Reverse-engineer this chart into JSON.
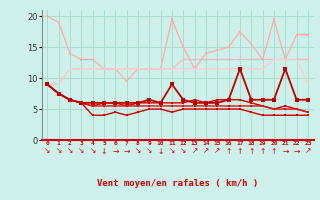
{
  "bg_color": "#cef0ea",
  "grid_color": "#aaddcc",
  "xlabel": "Vent moyen/en rafales ( km/h )",
  "ylim": [
    0,
    21
  ],
  "yticks": [
    0,
    5,
    10,
    15,
    20
  ],
  "series": [
    {
      "values": [
        20,
        19,
        14,
        13,
        13,
        11.5,
        11.5,
        9.5,
        11.5,
        11.5,
        11.5,
        19.5,
        15,
        11.5,
        14,
        14.5,
        15,
        17.5,
        15.5,
        13,
        19.5,
        13,
        17,
        17
      ],
      "color": "#ffaaaa",
      "lw": 0.9,
      "marker": "s",
      "ms": 1.8
    },
    {
      "values": [
        9,
        9,
        11.5,
        11.5,
        11.5,
        11.5,
        11.5,
        11.5,
        11.5,
        11.5,
        11.5,
        11.5,
        13,
        13,
        13,
        13,
        13,
        13,
        13,
        13,
        13,
        13,
        13,
        13
      ],
      "color": "#ffbbbb",
      "lw": 0.9,
      "marker": "s",
      "ms": 1.8
    },
    {
      "values": [
        9,
        9,
        11.5,
        11.5,
        11.5,
        11.5,
        11.5,
        11.5,
        11.5,
        11.5,
        11.5,
        11.5,
        11.5,
        11.5,
        11.5,
        11.5,
        11.5,
        11.5,
        11.5,
        11.5,
        13,
        13,
        13,
        9
      ],
      "color": "#ffcccc",
      "lw": 0.9,
      "marker": "s",
      "ms": 1.8
    },
    {
      "values": [
        9,
        7.5,
        6.5,
        6,
        5.5,
        6,
        6,
        5.5,
        6,
        6,
        6,
        6,
        6,
        6.5,
        6,
        6.5,
        6.5,
        6.5,
        6,
        5.5,
        5,
        5.5,
        5,
        4.5
      ],
      "color": "#cc0000",
      "lw": 1.0,
      "marker": "s",
      "ms": 1.8
    },
    {
      "values": [
        9,
        7.5,
        6.5,
        6,
        5.5,
        5.5,
        5.5,
        5.5,
        5.5,
        5.5,
        5.5,
        5.5,
        5.5,
        5.5,
        5.5,
        5.5,
        5.5,
        5.5,
        5.5,
        5.5,
        5,
        5,
        5,
        4.5
      ],
      "color": "#dd1111",
      "lw": 1.0,
      "marker": "s",
      "ms": 1.5
    },
    {
      "values": [
        9,
        7.5,
        6.5,
        6,
        4,
        4,
        4.5,
        4,
        4.5,
        5,
        5,
        4.5,
        5,
        5,
        5,
        5,
        5,
        5,
        4.5,
        4,
        4,
        4,
        4,
        4
      ],
      "color": "#cc0000",
      "lw": 1.0,
      "marker": "s",
      "ms": 1.8
    },
    {
      "values": [
        9,
        7.5,
        6.5,
        6,
        6,
        6,
        6,
        6,
        6,
        6.5,
        6,
        9,
        6.5,
        6,
        6,
        6,
        6.5,
        11.5,
        6.5,
        6.5,
        6.5,
        11.5,
        6.5,
        6.5
      ],
      "color": "#bb0000",
      "lw": 1.3,
      "marker": "s",
      "ms": 2.2
    }
  ],
  "arrows": [
    "↘",
    "↘",
    "↘",
    "↘",
    "↘",
    "↓",
    "→",
    "→",
    "↘",
    "↘",
    "↓",
    "↘",
    "↘",
    "↗",
    "↗",
    "↗",
    "↑",
    "↑",
    "↑",
    "↑",
    "↑",
    "→",
    "→",
    "↗"
  ],
  "arrow_color": "#cc0000",
  "label_color": "#cc0000",
  "tick_color": "#333333"
}
